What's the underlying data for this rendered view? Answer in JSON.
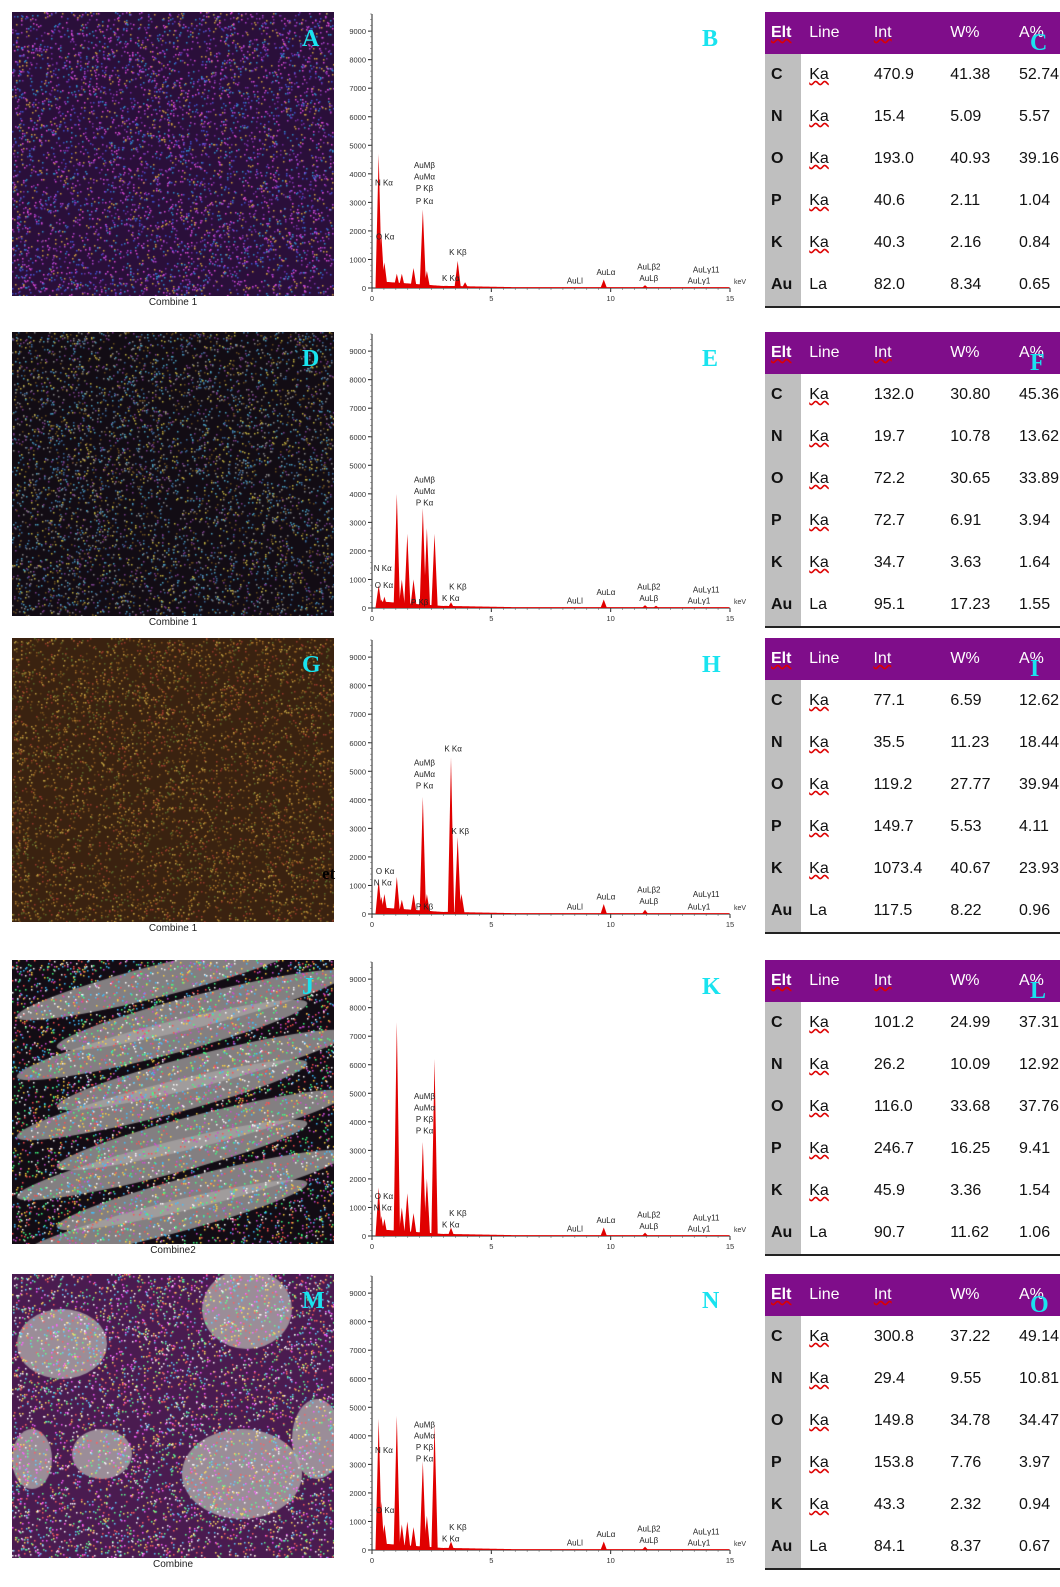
{
  "rows": [
    {
      "map": {
        "letter": "A",
        "caption": "Combine 1",
        "tone": "purple"
      },
      "spectrum": {
        "letter": "B",
        "peaks": [
          {
            "x": 0.28,
            "h": 4700
          },
          {
            "x": 0.39,
            "h": 1900
          },
          {
            "x": 0.52,
            "h": 900
          },
          {
            "x": 1.04,
            "h": 500
          },
          {
            "x": 1.25,
            "h": 500
          },
          {
            "x": 1.74,
            "h": 700
          },
          {
            "x": 2.13,
            "h": 2750
          },
          {
            "x": 2.3,
            "h": 600
          },
          {
            "x": 3.59,
            "h": 950
          },
          {
            "x": 3.9,
            "h": 200
          },
          {
            "x": 9.71,
            "h": 300
          },
          {
            "x": 11.44,
            "h": 100
          }
        ],
        "labels": [
          {
            "t": "N Kα",
            "x": 0.5,
            "y": 3600
          },
          {
            "t": "O Kα",
            "x": 0.55,
            "y": 1700
          },
          {
            "t": "AuMβ",
            "x": 2.2,
            "y": 4200
          },
          {
            "t": "AuMα",
            "x": 2.2,
            "y": 3800
          },
          {
            "t": "P Kβ",
            "x": 2.2,
            "y": 3400
          },
          {
            "t": "P Kα",
            "x": 2.2,
            "y": 2950
          },
          {
            "t": "K Kβ",
            "x": 3.6,
            "y": 1150
          },
          {
            "t": "K Kα",
            "x": 3.3,
            "y": 250
          },
          {
            "t": "AuLl",
            "x": 8.5,
            "y": 150
          },
          {
            "t": "AuLα",
            "x": 9.8,
            "y": 450
          },
          {
            "t": "AuLβ2",
            "x": 11.6,
            "y": 650
          },
          {
            "t": "AuLβ",
            "x": 11.6,
            "y": 250
          },
          {
            "t": "AuLγ11",
            "x": 14.0,
            "y": 550
          },
          {
            "t": "AuLγ1",
            "x": 13.7,
            "y": 150
          }
        ]
      },
      "table": {
        "letter": "C",
        "rows": [
          [
            "C",
            "Ka",
            "470.9",
            "41.38",
            "52.74"
          ],
          [
            "N",
            "Ka",
            "15.4",
            "5.09",
            "5.57"
          ],
          [
            "O",
            "Ka",
            "193.0",
            "40.93",
            "39.16"
          ],
          [
            "P",
            "Ka",
            "40.6",
            "2.11",
            "1.04"
          ],
          [
            "K",
            "Ka",
            "40.3",
            "2.16",
            "0.84"
          ],
          [
            "Au",
            "La",
            "82.0",
            "8.34",
            "0.65"
          ]
        ]
      }
    },
    {
      "map": {
        "letter": "D",
        "caption": "Combine 1",
        "tone": "dark"
      },
      "spectrum": {
        "letter": "E",
        "peaks": [
          {
            "x": 0.28,
            "h": 800
          },
          {
            "x": 0.39,
            "h": 300
          },
          {
            "x": 0.52,
            "h": 400
          },
          {
            "x": 1.04,
            "h": 4000
          },
          {
            "x": 1.25,
            "h": 1000
          },
          {
            "x": 1.48,
            "h": 2600
          },
          {
            "x": 1.74,
            "h": 1000
          },
          {
            "x": 2.13,
            "h": 3500
          },
          {
            "x": 2.3,
            "h": 2800
          },
          {
            "x": 2.62,
            "h": 2600
          },
          {
            "x": 3.31,
            "h": 200
          },
          {
            "x": 9.71,
            "h": 300
          },
          {
            "x": 11.44,
            "h": 100
          },
          {
            "x": 11.9,
            "h": 80
          }
        ],
        "labels": [
          {
            "t": "N Kα",
            "x": 0.45,
            "y": 1300
          },
          {
            "t": "O Kα",
            "x": 0.5,
            "y": 700
          },
          {
            "t": "AuMβ",
            "x": 2.2,
            "y": 4400
          },
          {
            "t": "AuMα",
            "x": 2.2,
            "y": 4000
          },
          {
            "t": "P Kα",
            "x": 2.2,
            "y": 3600
          },
          {
            "t": "K Kβ",
            "x": 3.6,
            "y": 650
          },
          {
            "t": "K Kα",
            "x": 3.3,
            "y": 250
          },
          {
            "t": "P Kβ",
            "x": 2.0,
            "y": 100
          },
          {
            "t": "AuLl",
            "x": 8.5,
            "y": 150
          },
          {
            "t": "AuLα",
            "x": 9.8,
            "y": 450
          },
          {
            "t": "AuLβ2",
            "x": 11.6,
            "y": 650
          },
          {
            "t": "AuLβ",
            "x": 11.6,
            "y": 250
          },
          {
            "t": "AuLγ11",
            "x": 14.0,
            "y": 550
          },
          {
            "t": "AuLγ1",
            "x": 13.7,
            "y": 150
          }
        ]
      },
      "table": {
        "letter": "F",
        "rows": [
          [
            "C",
            "Ka",
            "132.0",
            "30.80",
            "45.36"
          ],
          [
            "N",
            "Ka",
            "19.7",
            "10.78",
            "13.62"
          ],
          [
            "O",
            "Ka",
            "72.2",
            "30.65",
            "33.89"
          ],
          [
            "P",
            "Ka",
            "72.7",
            "6.91",
            "3.94"
          ],
          [
            "K",
            "Ka",
            "34.7",
            "3.63",
            "1.64"
          ],
          [
            "Au",
            "La",
            "95.1",
            "17.23",
            "1.55"
          ]
        ]
      }
    },
    {
      "map": {
        "letter": "G",
        "caption": "Combine 1",
        "tone": "orange"
      },
      "spectrum": {
        "letter": "H",
        "peaks": [
          {
            "x": 0.28,
            "h": 1200
          },
          {
            "x": 0.39,
            "h": 600
          },
          {
            "x": 0.52,
            "h": 700
          },
          {
            "x": 1.04,
            "h": 1300
          },
          {
            "x": 1.25,
            "h": 500
          },
          {
            "x": 1.74,
            "h": 700
          },
          {
            "x": 2.13,
            "h": 4100
          },
          {
            "x": 2.3,
            "h": 700
          },
          {
            "x": 3.31,
            "h": 5500
          },
          {
            "x": 3.59,
            "h": 2700
          },
          {
            "x": 3.75,
            "h": 700
          },
          {
            "x": 9.71,
            "h": 350
          },
          {
            "x": 11.44,
            "h": 150
          }
        ],
        "labels": [
          {
            "t": "O Kα",
            "x": 0.55,
            "y": 1400
          },
          {
            "t": "N Kα",
            "x": 0.45,
            "y": 1000
          },
          {
            "t": "AuMβ",
            "x": 2.2,
            "y": 5200
          },
          {
            "t": "AuMα",
            "x": 2.2,
            "y": 4800
          },
          {
            "t": "P Kα",
            "x": 2.2,
            "y": 4400
          },
          {
            "t": "K Kα",
            "x": 3.4,
            "y": 5700
          },
          {
            "t": "K Kβ",
            "x": 3.7,
            "y": 2800
          },
          {
            "t": "P Kβ",
            "x": 2.2,
            "y": 150
          },
          {
            "t": "AuLl",
            "x": 8.5,
            "y": 150
          },
          {
            "t": "AuLα",
            "x": 9.8,
            "y": 500
          },
          {
            "t": "AuLβ2",
            "x": 11.6,
            "y": 750
          },
          {
            "t": "AuLβ",
            "x": 11.6,
            "y": 350
          },
          {
            "t": "AuLγ11",
            "x": 14.0,
            "y": 600
          },
          {
            "t": "AuLγ1",
            "x": 13.7,
            "y": 150
          }
        ]
      },
      "table": {
        "letter": "I",
        "rows": [
          [
            "C",
            "Ka",
            "77.1",
            "6.59",
            "12.62"
          ],
          [
            "N",
            "Ka",
            "35.5",
            "11.23",
            "18.44"
          ],
          [
            "O",
            "Ka",
            "119.2",
            "27.77",
            "39.94"
          ],
          [
            "P",
            "Ka",
            "149.7",
            "5.53",
            "4.11"
          ],
          [
            "K",
            "Ka",
            "1073.4",
            "40.67",
            "23.93"
          ],
          [
            "Au",
            "La",
            "117.5",
            "8.22",
            "0.96"
          ]
        ]
      }
    },
    {
      "map": {
        "letter": "J",
        "caption": "Combine2",
        "tone": "gray-streak"
      },
      "spectrum": {
        "letter": "K",
        "peaks": [
          {
            "x": 0.28,
            "h": 1700
          },
          {
            "x": 0.39,
            "h": 700
          },
          {
            "x": 0.52,
            "h": 600
          },
          {
            "x": 1.04,
            "h": 7500
          },
          {
            "x": 1.25,
            "h": 1000
          },
          {
            "x": 1.48,
            "h": 1500
          },
          {
            "x": 1.74,
            "h": 800
          },
          {
            "x": 2.13,
            "h": 3300
          },
          {
            "x": 2.3,
            "h": 2000
          },
          {
            "x": 2.62,
            "h": 6200
          },
          {
            "x": 3.31,
            "h": 300
          },
          {
            "x": 9.71,
            "h": 300
          },
          {
            "x": 11.44,
            "h": 120
          }
        ],
        "labels": [
          {
            "t": "O Kα",
            "x": 0.5,
            "y": 1300
          },
          {
            "t": "N Kα",
            "x": 0.45,
            "y": 900
          },
          {
            "t": "AuMβ",
            "x": 2.2,
            "y": 4800
          },
          {
            "t": "AuMα",
            "x": 2.2,
            "y": 4400
          },
          {
            "t": "P Kβ",
            "x": 2.2,
            "y": 4000
          },
          {
            "t": "P Kα",
            "x": 2.2,
            "y": 3600
          },
          {
            "t": "K Kβ",
            "x": 3.6,
            "y": 700
          },
          {
            "t": "K Kα",
            "x": 3.3,
            "y": 300
          },
          {
            "t": "AuLl",
            "x": 8.5,
            "y": 150
          },
          {
            "t": "AuLα",
            "x": 9.8,
            "y": 450
          },
          {
            "t": "AuLβ2",
            "x": 11.6,
            "y": 650
          },
          {
            "t": "AuLβ",
            "x": 11.6,
            "y": 250
          },
          {
            "t": "AuLγ11",
            "x": 14.0,
            "y": 550
          },
          {
            "t": "AuLγ1",
            "x": 13.7,
            "y": 150
          }
        ]
      },
      "table": {
        "letter": "L",
        "rows": [
          [
            "C",
            "Ka",
            "101.2",
            "24.99",
            "37.31"
          ],
          [
            "N",
            "Ka",
            "26.2",
            "10.09",
            "12.92"
          ],
          [
            "O",
            "Ka",
            "116.0",
            "33.68",
            "37.76"
          ],
          [
            "P",
            "Ka",
            "246.7",
            "16.25",
            "9.41"
          ],
          [
            "K",
            "Ka",
            "45.9",
            "3.36",
            "1.54"
          ],
          [
            "Au",
            "La",
            "90.7",
            "11.62",
            "1.06"
          ]
        ]
      }
    },
    {
      "map": {
        "letter": "M",
        "caption": "Combine",
        "tone": "gray-blob"
      },
      "spectrum": {
        "letter": "N",
        "peaks": [
          {
            "x": 0.28,
            "h": 4600
          },
          {
            "x": 0.39,
            "h": 1700
          },
          {
            "x": 0.52,
            "h": 900
          },
          {
            "x": 1.04,
            "h": 4700
          },
          {
            "x": 1.25,
            "h": 900
          },
          {
            "x": 1.48,
            "h": 1000
          },
          {
            "x": 1.74,
            "h": 800
          },
          {
            "x": 2.13,
            "h": 3100
          },
          {
            "x": 2.3,
            "h": 1200
          },
          {
            "x": 2.62,
            "h": 4400
          },
          {
            "x": 3.31,
            "h": 300
          },
          {
            "x": 9.71,
            "h": 300
          },
          {
            "x": 11.44,
            "h": 120
          }
        ],
        "labels": [
          {
            "t": "N Kα",
            "x": 0.5,
            "y": 3400
          },
          {
            "t": "O Kα",
            "x": 0.55,
            "y": 1300
          },
          {
            "t": "AuMβ",
            "x": 2.2,
            "y": 4300
          },
          {
            "t": "AuMα",
            "x": 2.2,
            "y": 3900
          },
          {
            "t": "P Kβ",
            "x": 2.2,
            "y": 3500
          },
          {
            "t": "P Kα",
            "x": 2.2,
            "y": 3100
          },
          {
            "t": "K Kβ",
            "x": 3.6,
            "y": 700
          },
          {
            "t": "K Kα",
            "x": 3.3,
            "y": 300
          },
          {
            "t": "AuLl",
            "x": 8.5,
            "y": 150
          },
          {
            "t": "AuLα",
            "x": 9.8,
            "y": 450
          },
          {
            "t": "AuLβ2",
            "x": 11.6,
            "y": 650
          },
          {
            "t": "AuLβ",
            "x": 11.6,
            "y": 250
          },
          {
            "t": "AuLγ11",
            "x": 14.0,
            "y": 550
          },
          {
            "t": "AuLγ1",
            "x": 13.7,
            "y": 150
          }
        ]
      },
      "table": {
        "letter": "O",
        "rows": [
          [
            "C",
            "Ka",
            "300.8",
            "37.22",
            "49.14"
          ],
          [
            "N",
            "Ka",
            "29.4",
            "9.55",
            "10.81"
          ],
          [
            "O",
            "Ka",
            "149.8",
            "34.78",
            "34.47"
          ],
          [
            "P",
            "Ka",
            "153.8",
            "7.76",
            "3.97"
          ],
          [
            "K",
            "Ka",
            "43.3",
            "2.32",
            "0.94"
          ],
          [
            "Au",
            "La",
            "84.1",
            "8.37",
            "0.67"
          ]
        ]
      }
    }
  ],
  "table_headers": [
    "Elt",
    "Line",
    "Int",
    "W%",
    "A%"
  ],
  "axis": {
    "y_ticks": [
      0,
      1000,
      2000,
      3000,
      4000,
      5000,
      6000,
      7000,
      8000,
      9000
    ],
    "x_ticks": [
      0,
      5,
      10,
      15
    ],
    "x_unit": "keV"
  },
  "stray_text": "et",
  "colors": {
    "spectrum_fill": "#e00000",
    "label_color": "#19e3ef",
    "table_header": "#7f0d8a"
  }
}
